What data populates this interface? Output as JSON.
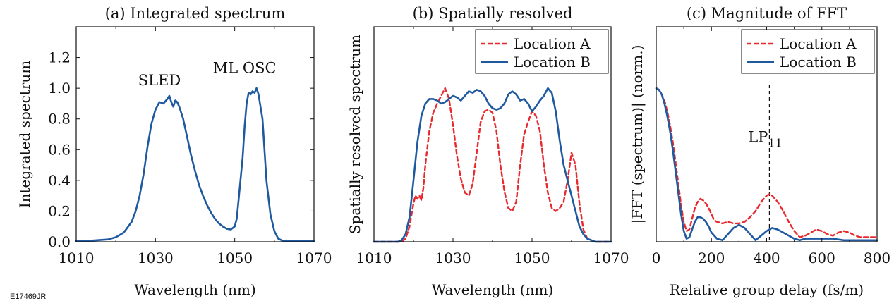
{
  "figure_code": "E17469JR",
  "chart_data": [
    {
      "id": "a",
      "type": "line",
      "title": "(a) Integrated spectrum",
      "xlabel": "Wavelength (nm)",
      "ylabel": "Integrated spectrum",
      "xlim": [
        1010,
        1070
      ],
      "ylim": [
        0,
        1.4
      ],
      "xticks": [
        "1010",
        "1030",
        "1050",
        "1070"
      ],
      "yticks": [
        "0.0",
        "0.2",
        "0.4",
        "0.6",
        "0.8",
        "1.0",
        "1.2"
      ],
      "annotations": [
        {
          "text": "SLED",
          "x": 1031,
          "y": 1.02
        },
        {
          "text": "ML OSC",
          "x": 1052.5,
          "y": 1.1
        }
      ],
      "series": [
        {
          "color": "#1f5aa0",
          "dash": "solid",
          "x": [
            1010,
            1014,
            1018,
            1020,
            1022,
            1024,
            1025,
            1026,
            1027,
            1028,
            1029,
            1030,
            1031,
            1032,
            1033,
            1033.5,
            1034,
            1034.5,
            1035,
            1035.5,
            1036,
            1037,
            1038,
            1039,
            1040,
            1041,
            1042,
            1043,
            1044,
            1045,
            1046,
            1047,
            1048,
            1049,
            1050,
            1050.5,
            1051,
            1052,
            1052.5,
            1053,
            1053.5,
            1054,
            1054.5,
            1055,
            1055.5,
            1056,
            1056.5,
            1057,
            1057.5,
            1058,
            1059,
            1060,
            1061,
            1062,
            1064,
            1070
          ],
          "y": [
            0.005,
            0.008,
            0.015,
            0.03,
            0.06,
            0.13,
            0.2,
            0.3,
            0.44,
            0.62,
            0.77,
            0.86,
            0.91,
            0.9,
            0.93,
            0.95,
            0.91,
            0.88,
            0.92,
            0.91,
            0.88,
            0.8,
            0.68,
            0.56,
            0.46,
            0.37,
            0.3,
            0.24,
            0.19,
            0.15,
            0.12,
            0.1,
            0.085,
            0.08,
            0.1,
            0.15,
            0.28,
            0.55,
            0.75,
            0.9,
            0.97,
            0.96,
            0.98,
            0.97,
            1.0,
            0.96,
            0.88,
            0.8,
            0.6,
            0.4,
            0.18,
            0.07,
            0.02,
            0.008,
            0.004,
            0.003
          ]
        }
      ]
    },
    {
      "id": "b",
      "type": "line",
      "title": "(b) Spatially resolved",
      "xlabel": "Wavelength (nm)",
      "ylabel": "Spatially resolved spectrum",
      "xlim": [
        1010,
        1070
      ],
      "ylim": [
        0,
        1.4
      ],
      "xticks": [
        "1010",
        "1030",
        "1050",
        "1070"
      ],
      "legend_position": "top-right",
      "series": [
        {
          "name": "Location A",
          "color": "#e8292e",
          "dash": "dashed",
          "x": [
            1010,
            1017,
            1018,
            1019,
            1020,
            1020.5,
            1021,
            1021.5,
            1022,
            1022.5,
            1023,
            1024,
            1025,
            1026,
            1027,
            1028,
            1029,
            1030,
            1031,
            1032,
            1033,
            1034,
            1035,
            1036,
            1037,
            1038,
            1039,
            1040,
            1041,
            1042,
            1043,
            1044,
            1045,
            1046,
            1047,
            1048,
            1049,
            1050,
            1051,
            1052,
            1053,
            1054,
            1055,
            1056,
            1057,
            1058,
            1059,
            1060,
            1061,
            1062,
            1063,
            1064,
            1066,
            1070
          ],
          "y": [
            0,
            0,
            0.02,
            0.1,
            0.25,
            0.3,
            0.28,
            0.3,
            0.27,
            0.35,
            0.5,
            0.72,
            0.84,
            0.9,
            0.95,
            1.0,
            0.93,
            0.76,
            0.56,
            0.41,
            0.32,
            0.3,
            0.38,
            0.58,
            0.78,
            0.85,
            0.86,
            0.84,
            0.72,
            0.5,
            0.33,
            0.22,
            0.2,
            0.26,
            0.5,
            0.7,
            0.78,
            0.85,
            0.82,
            0.72,
            0.5,
            0.32,
            0.22,
            0.2,
            0.22,
            0.26,
            0.4,
            0.58,
            0.5,
            0.25,
            0.08,
            0.02,
            0,
            0
          ]
        },
        {
          "name": "Location B",
          "color": "#1f5aa0",
          "dash": "solid",
          "x": [
            1010,
            1016,
            1017,
            1018,
            1019,
            1020,
            1021,
            1022,
            1023,
            1024,
            1025,
            1026,
            1027,
            1028,
            1029,
            1030,
            1031,
            1032,
            1033,
            1034,
            1035,
            1036,
            1037,
            1038,
            1039,
            1040,
            1041,
            1042,
            1043,
            1044,
            1045,
            1046,
            1047,
            1048,
            1049,
            1050,
            1051,
            1052,
            1053,
            1054,
            1055,
            1056,
            1057,
            1058,
            1059,
            1060,
            1061,
            1062,
            1063,
            1064,
            1066,
            1070
          ],
          "y": [
            0,
            0,
            0.01,
            0.05,
            0.16,
            0.4,
            0.65,
            0.82,
            0.9,
            0.93,
            0.93,
            0.92,
            0.9,
            0.91,
            0.93,
            0.95,
            0.94,
            0.92,
            0.95,
            0.98,
            0.97,
            0.99,
            0.98,
            0.95,
            0.9,
            0.87,
            0.86,
            0.87,
            0.9,
            0.96,
            0.98,
            0.96,
            0.92,
            0.93,
            0.9,
            0.85,
            0.88,
            0.92,
            0.95,
            1.0,
            0.97,
            0.85,
            0.66,
            0.5,
            0.4,
            0.3,
            0.2,
            0.1,
            0.05,
            0.02,
            0,
            0
          ]
        }
      ]
    },
    {
      "id": "c",
      "type": "line",
      "title": "(c) Magnitude of FFT",
      "xlabel": "Relative group delay (fs/m)",
      "ylabel": "|FFT (spectrum)| (norm.)",
      "xlim": [
        0,
        800
      ],
      "ylim": [
        0,
        1.4
      ],
      "xticks": [
        "0",
        "200",
        "400",
        "600",
        "800"
      ],
      "legend_position": "top-right",
      "annotations": [
        {
          "text": "LP",
          "subscript": "11",
          "x": 395,
          "y": 0.65
        }
      ],
      "reference_line": {
        "x": 410,
        "style": "dashed"
      },
      "series": [
        {
          "name": "Location A",
          "color": "#e8292e",
          "dash": "dashed",
          "x": [
            0,
            10,
            20,
            30,
            40,
            50,
            60,
            70,
            80,
            90,
            100,
            110,
            120,
            130,
            140,
            150,
            160,
            170,
            180,
            190,
            200,
            210,
            220,
            240,
            260,
            280,
            300,
            320,
            340,
            360,
            380,
            400,
            410,
            420,
            440,
            460,
            480,
            500,
            520,
            540,
            560,
            580,
            600,
            620,
            640,
            660,
            680,
            700,
            720,
            740,
            760,
            780,
            800
          ],
          "y": [
            1.0,
            0.99,
            0.96,
            0.92,
            0.85,
            0.76,
            0.65,
            0.52,
            0.38,
            0.24,
            0.13,
            0.07,
            0.08,
            0.15,
            0.22,
            0.26,
            0.28,
            0.27,
            0.25,
            0.22,
            0.18,
            0.14,
            0.13,
            0.12,
            0.13,
            0.12,
            0.12,
            0.13,
            0.16,
            0.2,
            0.26,
            0.3,
            0.31,
            0.3,
            0.26,
            0.2,
            0.13,
            0.07,
            0.03,
            0.04,
            0.06,
            0.08,
            0.07,
            0.05,
            0.04,
            0.06,
            0.07,
            0.06,
            0.04,
            0.03,
            0.03,
            0.03,
            0.03
          ]
        },
        {
          "name": "Location B",
          "color": "#1f5aa0",
          "dash": "solid",
          "x": [
            0,
            10,
            20,
            30,
            40,
            50,
            60,
            70,
            80,
            90,
            100,
            110,
            120,
            130,
            140,
            150,
            160,
            170,
            180,
            190,
            200,
            220,
            240,
            260,
            280,
            300,
            320,
            340,
            360,
            380,
            400,
            420,
            440,
            460,
            480,
            500,
            520,
            540,
            560,
            600,
            640,
            680,
            720,
            760,
            800
          ],
          "y": [
            1.0,
            0.99,
            0.96,
            0.9,
            0.82,
            0.72,
            0.6,
            0.46,
            0.32,
            0.18,
            0.07,
            0.02,
            0.03,
            0.08,
            0.13,
            0.16,
            0.16,
            0.15,
            0.13,
            0.1,
            0.06,
            0.02,
            0.01,
            0.05,
            0.09,
            0.11,
            0.09,
            0.05,
            0.01,
            0.04,
            0.07,
            0.09,
            0.08,
            0.06,
            0.04,
            0.02,
            0.01,
            0.02,
            0.02,
            0.02,
            0.02,
            0.01,
            0.01,
            0.01,
            0.01
          ]
        }
      ]
    }
  ]
}
